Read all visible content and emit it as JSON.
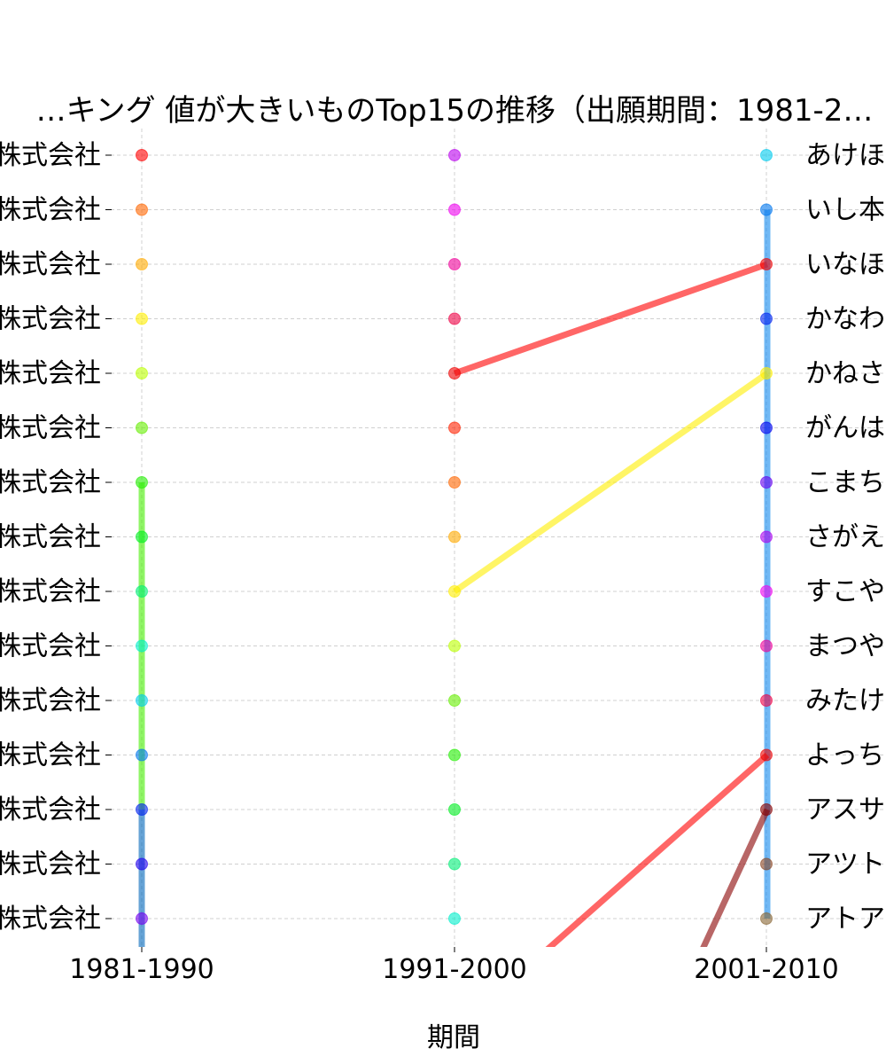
{
  "chart_data": {
    "type": "line",
    "chart_kind": "bump-chart",
    "title": "…キング 値が大きいものTop15の推移（出願期間：1981-2…",
    "xlabel": "期間",
    "ylabel": "",
    "x": [
      "1981-1990",
      "1991-2000",
      "2001-2010"
    ],
    "y_range": [
      1,
      15
    ],
    "grid": true,
    "left_labels": [
      "株式会社",
      "株式会社",
      "株式会社",
      "株式会社",
      "株式会社",
      "株式会社",
      "株式会社",
      "株式会社",
      "株式会社",
      "株式会社",
      "株式会社",
      "株式会社",
      "株式会社",
      "株式会社",
      "株式会社"
    ],
    "right_labels": [
      "あけほ",
      "いし本",
      "いなほ",
      "かなわ",
      "かねさ",
      "がんは",
      "こまち",
      "さがえ",
      "すこや",
      "まつや",
      "みたけ",
      "よっち",
      "アスサ",
      "アツト",
      "アトア"
    ],
    "markers": {
      "1981-1990": [
        "#ff0000",
        "#ff6600",
        "#ffaa00",
        "#ffee00",
        "#bbff00",
        "#66ee00",
        "#22ee00",
        "#00ee22",
        "#00ee77",
        "#00eecc",
        "#00ccee",
        "#0077ee",
        "#0022ee",
        "#2200ee",
        "#7700ee"
      ],
      "1991-2000": [
        "#bb00ee",
        "#ee00ee",
        "#ee0099",
        "#ee0044",
        "#ee0000",
        "#ff2200",
        "#ff6600",
        "#ffaa00",
        "#ffee00",
        "#bbff00",
        "#66ee00",
        "#22ee00",
        "#00ee22",
        "#00ee77",
        "#00eecc"
      ],
      "2001-2010": [
        "#00ccee",
        "#0077ee",
        "#ee0000",
        "#0022ee",
        "#ffee00",
        "#0000ee",
        "#6600ee",
        "#aa00ee",
        "#ee00ee",
        "#ee0099",
        "#ee0044",
        "#ee0000",
        "#880000",
        "#884422",
        "#886633"
      ]
    },
    "series": [
      {
        "color": "#44ee00",
        "points": [
          [
            0,
            7
          ],
          [
            0,
            13
          ]
        ]
      },
      {
        "color": "#0066bb",
        "points": [
          [
            0,
            13
          ],
          [
            0,
            15.6
          ]
        ]
      },
      {
        "color": "#ff0000",
        "points": [
          [
            1,
            5
          ],
          [
            2,
            3
          ]
        ]
      },
      {
        "color": "#ffee00",
        "points": [
          [
            1,
            9
          ],
          [
            2,
            5
          ]
        ]
      },
      {
        "color": "#1188ee",
        "points": [
          [
            2,
            2
          ],
          [
            2,
            15
          ]
        ]
      },
      {
        "color": "#ff0000",
        "points": [
          [
            2,
            12
          ],
          [
            1.29,
            15.6
          ]
        ]
      },
      {
        "color": "#880000",
        "points": [
          [
            2,
            13
          ],
          [
            1.79,
            15.6
          ]
        ]
      }
    ]
  }
}
